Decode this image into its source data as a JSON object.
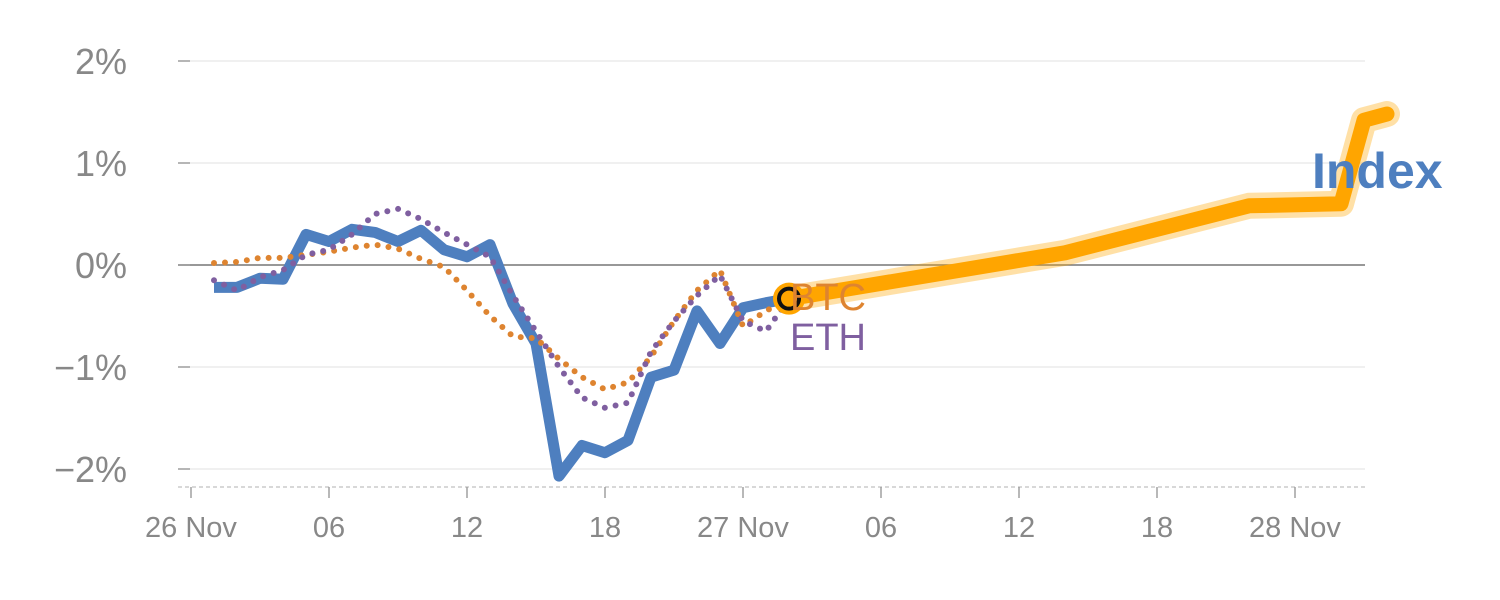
{
  "chart_data": {
    "type": "line",
    "title": "",
    "xlabel": "",
    "ylabel": "",
    "ylim": [
      -2.2,
      2.1
    ],
    "x_tick_labels": [
      "26 Nov",
      "06",
      "12",
      "18",
      "27 Nov",
      "06",
      "12",
      "18",
      "28 Nov"
    ],
    "y_tick_labels": [
      "2%",
      "1%",
      "0%",
      "−1%",
      "−2%"
    ],
    "y_ticks": [
      2,
      1,
      0,
      -1,
      -2
    ],
    "grid": true,
    "colors": {
      "index": "#4e7fbf",
      "btc": "#de8430",
      "eth": "#7f5fa0",
      "forecast": "#ffa500",
      "zero_line": "#777777",
      "grid": "#e6e6e6"
    },
    "series": [
      {
        "name": "Index",
        "key": "index",
        "hours": [
          1,
          2,
          3,
          4,
          5,
          6,
          7,
          8,
          9,
          10,
          11,
          12,
          13,
          14,
          15,
          16,
          17,
          18,
          19,
          20,
          21,
          22,
          23,
          24,
          25,
          26
        ],
        "values": [
          -0.22,
          -0.22,
          -0.13,
          -0.14,
          0.3,
          0.23,
          0.35,
          0.32,
          0.23,
          0.34,
          0.15,
          0.08,
          0.2,
          -0.38,
          -0.77,
          -2.07,
          -1.77,
          -1.84,
          -1.72,
          -1.1,
          -1.03,
          -0.45,
          -0.77,
          -0.42,
          -0.37,
          -0.33
        ]
      },
      {
        "name": "BTC",
        "key": "btc",
        "hours": [
          1,
          2,
          3,
          4,
          5,
          6,
          7,
          8,
          9,
          10,
          11,
          12,
          13,
          14,
          15,
          16,
          17,
          18,
          19,
          20,
          21,
          22,
          23,
          24,
          25,
          26
        ],
        "values": [
          0.02,
          0.03,
          0.07,
          0.07,
          0.1,
          0.13,
          0.17,
          0.2,
          0.16,
          0.06,
          -0.02,
          -0.25,
          -0.5,
          -0.7,
          -0.72,
          -0.92,
          -1.1,
          -1.22,
          -1.15,
          -0.9,
          -0.55,
          -0.25,
          -0.05,
          -0.6,
          -0.45,
          -0.33
        ]
      },
      {
        "name": "ETH",
        "key": "eth",
        "hours": [
          1,
          2,
          3,
          4,
          5,
          6,
          7,
          8,
          9,
          10,
          11,
          12,
          13,
          14,
          15,
          16,
          17,
          18,
          19,
          20,
          21,
          22,
          23,
          24,
          25,
          26
        ],
        "values": [
          -0.15,
          -0.25,
          -0.12,
          -0.05,
          0.1,
          0.15,
          0.3,
          0.5,
          0.55,
          0.45,
          0.32,
          0.2,
          0.08,
          -0.3,
          -0.65,
          -1.0,
          -1.3,
          -1.4,
          -1.35,
          -0.85,
          -0.55,
          -0.3,
          -0.1,
          -0.55,
          -0.65,
          -0.33
        ]
      },
      {
        "name": "",
        "key": "forecast",
        "hours": [
          26,
          38,
          46,
          50,
          51,
          52
        ],
        "values": [
          -0.33,
          0.12,
          0.58,
          0.6,
          1.42,
          1.48
        ]
      }
    ],
    "current_marker": {
      "hour": 26,
      "value": -0.33
    },
    "labels": {
      "index": "Index",
      "btc": "BTC",
      "eth": "ETH"
    }
  }
}
